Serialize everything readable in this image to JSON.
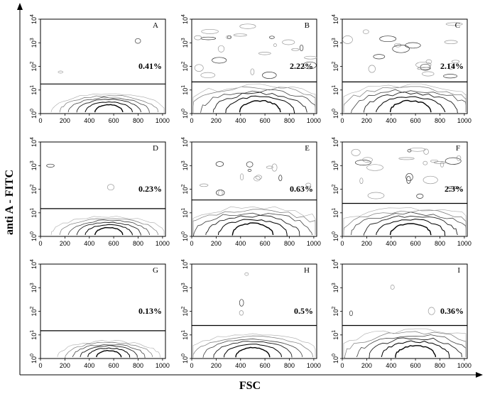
{
  "chart_data": {
    "type": "contour",
    "xlabel": "FSC",
    "ylabel": "anti A - FITC",
    "x_ticks": [
      "0",
      "200",
      "400",
      "600",
      "800",
      "1000"
    ],
    "y_ticks": [
      {
        "base": "10",
        "exp": "0"
      },
      {
        "base": "10",
        "exp": "1"
      },
      {
        "base": "10",
        "exp": "2"
      },
      {
        "base": "10",
        "exp": "3"
      },
      {
        "base": "10",
        "exp": "4"
      }
    ],
    "x_range": [
      0,
      1024
    ],
    "y_scale": "log",
    "y_range": [
      1,
      10000
    ],
    "panels": [
      {
        "letter": "A",
        "percent": "0.41%",
        "gate_y": 18,
        "spread": 0.9,
        "upper_noise": 0.05,
        "center_x": 560
      },
      {
        "letter": "B",
        "percent": "2.22%",
        "gate_y": 22,
        "spread": 1.4,
        "upper_noise": 0.8,
        "center_x": 560
      },
      {
        "letter": "C",
        "percent": "2.14%",
        "gate_y": 22,
        "spread": 1.4,
        "upper_noise": 0.7,
        "center_x": 560
      },
      {
        "letter": "D",
        "percent": "0.23%",
        "gate_y": 15,
        "spread": 0.9,
        "upper_noise": 0.05,
        "center_x": 560
      },
      {
        "letter": "E",
        "percent": "0.63%",
        "gate_y": 35,
        "spread": 1.5,
        "upper_noise": 0.5,
        "center_x": 500
      },
      {
        "letter": "F",
        "percent": "2.3%",
        "gate_y": 25,
        "spread": 1.6,
        "upper_noise": 0.8,
        "center_x": 560
      },
      {
        "letter": "G",
        "percent": "0.13%",
        "gate_y": 15,
        "spread": 0.8,
        "upper_noise": 0.0,
        "center_x": 560
      },
      {
        "letter": "H",
        "percent": "0.5%",
        "gate_y": 25,
        "spread": 1.1,
        "upper_noise": 0.1,
        "center_x": 500
      },
      {
        "letter": "I",
        "percent": "0.36%",
        "gate_y": 25,
        "spread": 1.3,
        "upper_noise": 0.1,
        "center_x": 600
      }
    ]
  }
}
